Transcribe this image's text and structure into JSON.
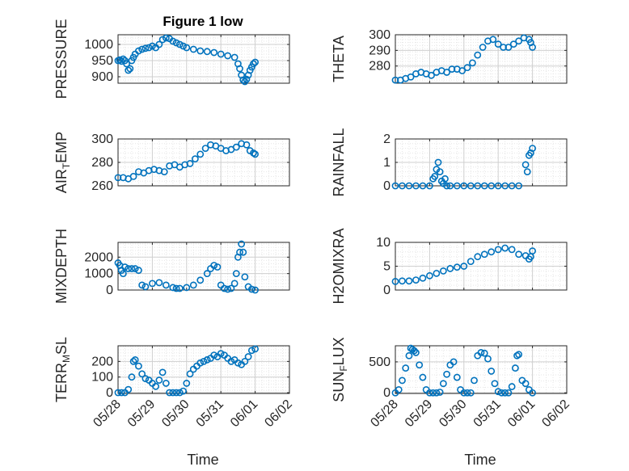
{
  "chart_data": {
    "title": "Figure 1 low",
    "type": "scatter",
    "x_tick_labels": [
      "05/28",
      "05/29",
      "05/30",
      "05/31",
      "06/01",
      "06/02"
    ],
    "x_ticks_days": [
      0,
      1,
      2,
      3,
      4,
      5
    ],
    "x_axis_label": "Time",
    "x_range_dates": [
      "05/28",
      "06/02"
    ],
    "marker": "open-circle",
    "marker_color": "#0072BD",
    "axes_color": "#262626",
    "grid_color": "#cfcfcf",
    "grid": true,
    "panels": [
      {
        "id": "pressure",
        "ylabel": "PRESSURE",
        "ylabel_sub": "",
        "ylabel_tail": "",
        "ylim": [
          880,
          1030
        ],
        "yticks": [
          900,
          950,
          1000
        ],
        "ytick_labels": [
          "900",
          "950",
          "1000"
        ],
        "x": [
          0.0,
          0.05,
          0.1,
          0.15,
          0.2,
          0.25,
          0.3,
          0.35,
          0.4,
          0.45,
          0.5,
          0.6,
          0.7,
          0.8,
          0.9,
          1.0,
          1.1,
          1.2,
          1.3,
          1.4,
          1.5,
          1.6,
          1.7,
          1.8,
          1.9,
          2.0,
          2.2,
          2.4,
          2.6,
          2.8,
          3.0,
          3.2,
          3.4,
          3.5,
          3.55,
          3.6,
          3.65,
          3.7,
          3.75,
          3.8,
          3.85,
          3.9,
          3.95,
          4.0
        ],
        "y": [
          950,
          952,
          948,
          955,
          950,
          940,
          920,
          925,
          950,
          960,
          970,
          980,
          985,
          988,
          990,
          995,
          990,
          1000,
          1015,
          1020,
          1018,
          1010,
          1005,
          1000,
          995,
          990,
          985,
          980,
          978,
          975,
          970,
          965,
          960,
          940,
          925,
          905,
          890,
          885,
          892,
          905,
          920,
          930,
          940,
          945
        ]
      },
      {
        "id": "theta",
        "ylabel": "THETA",
        "ylabel_sub": "",
        "ylabel_tail": "",
        "ylim": [
          269,
          300
        ],
        "yticks": [
          280,
          290,
          300
        ],
        "ytick_labels": [
          "280",
          "290",
          "300"
        ],
        "x": [
          0.0,
          0.15,
          0.3,
          0.45,
          0.6,
          0.75,
          0.9,
          1.05,
          1.2,
          1.35,
          1.5,
          1.65,
          1.8,
          1.95,
          2.1,
          2.25,
          2.4,
          2.55,
          2.7,
          2.85,
          3.0,
          3.15,
          3.3,
          3.45,
          3.6,
          3.75,
          3.9,
          3.95,
          4.0
        ],
        "y": [
          271,
          271,
          272,
          273,
          275,
          276,
          275,
          274,
          276,
          277,
          276,
          278,
          278,
          277,
          279,
          282,
          287,
          292,
          296,
          297,
          294,
          292,
          292,
          294,
          296,
          298,
          297,
          295,
          292
        ]
      },
      {
        "id": "air_temp",
        "ylabel": "AIR",
        "ylabel_sub": "T",
        "ylabel_tail": "EMP",
        "ylim": [
          260,
          300
        ],
        "yticks": [
          260,
          280,
          300
        ],
        "ytick_labels": [
          "260",
          "280",
          "300"
        ],
        "x": [
          0.0,
          0.15,
          0.3,
          0.45,
          0.6,
          0.75,
          0.9,
          1.05,
          1.2,
          1.35,
          1.5,
          1.65,
          1.8,
          1.95,
          2.1,
          2.25,
          2.4,
          2.55,
          2.7,
          2.85,
          3.0,
          3.15,
          3.3,
          3.45,
          3.6,
          3.75,
          3.85,
          3.95,
          4.0
        ],
        "y": [
          267,
          267,
          266,
          268,
          272,
          271,
          273,
          274,
          273,
          272,
          277,
          278,
          276,
          278,
          279,
          283,
          287,
          292,
          295,
          294,
          292,
          290,
          291,
          293,
          296,
          295,
          290,
          288,
          287
        ]
      },
      {
        "id": "rainfall",
        "ylabel": "RAINFALL",
        "ylabel_sub": "",
        "ylabel_tail": "",
        "ylim": [
          0,
          2
        ],
        "yticks": [
          0,
          1,
          2
        ],
        "ytick_labels": [
          "0",
          "1",
          "2"
        ],
        "x": [
          0.0,
          0.2,
          0.4,
          0.6,
          0.8,
          1.0,
          1.1,
          1.15,
          1.2,
          1.25,
          1.3,
          1.35,
          1.4,
          1.45,
          1.5,
          1.6,
          1.8,
          2.0,
          2.2,
          2.4,
          2.6,
          2.8,
          3.0,
          3.2,
          3.4,
          3.6,
          3.8,
          3.85,
          3.9,
          3.95,
          4.0
        ],
        "y": [
          0,
          0,
          0,
          0,
          0,
          0,
          0.3,
          0.4,
          0.7,
          1.0,
          0.6,
          0.2,
          0.1,
          0.3,
          0,
          0,
          0,
          0,
          0,
          0,
          0,
          0,
          0,
          0,
          0,
          0,
          0.9,
          0.6,
          1.3,
          1.4,
          1.6
        ]
      },
      {
        "id": "mixdepth",
        "ylabel": "MIXDEPTH",
        "ylabel_sub": "",
        "ylabel_tail": "",
        "ylim": [
          0,
          2900
        ],
        "yticks": [
          0,
          1000,
          2000
        ],
        "ytick_labels": [
          "0",
          "1000",
          "2000"
        ],
        "x": [
          0.0,
          0.05,
          0.1,
          0.15,
          0.2,
          0.3,
          0.4,
          0.5,
          0.6,
          0.7,
          0.8,
          1.0,
          1.2,
          1.4,
          1.6,
          1.7,
          1.8,
          2.0,
          2.2,
          2.4,
          2.6,
          2.7,
          2.8,
          2.9,
          3.0,
          3.1,
          3.2,
          3.3,
          3.4,
          3.45,
          3.5,
          3.55,
          3.6,
          3.65,
          3.7,
          3.8,
          3.9,
          4.0
        ],
        "y": [
          1650,
          1500,
          1200,
          1000,
          1400,
          1300,
          1300,
          1300,
          1200,
          300,
          200,
          400,
          450,
          300,
          150,
          100,
          100,
          150,
          300,
          600,
          1000,
          1300,
          1500,
          1400,
          300,
          100,
          50,
          100,
          400,
          1000,
          2000,
          2300,
          2800,
          2300,
          800,
          200,
          50,
          0
        ]
      },
      {
        "id": "h2omixra",
        "ylabel": "H2OMIXRA",
        "ylabel_sub": "",
        "ylabel_tail": "",
        "ylim": [
          0,
          10
        ],
        "yticks": [
          0,
          5,
          10
        ],
        "ytick_labels": [
          "0",
          "5",
          "10"
        ],
        "x": [
          0.0,
          0.2,
          0.4,
          0.6,
          0.8,
          1.0,
          1.2,
          1.4,
          1.6,
          1.8,
          2.0,
          2.2,
          2.4,
          2.6,
          2.8,
          3.0,
          3.2,
          3.4,
          3.6,
          3.8,
          3.9,
          3.95,
          4.0
        ],
        "y": [
          1.8,
          1.9,
          1.9,
          2.1,
          2.5,
          3.0,
          3.5,
          4.0,
          4.5,
          4.8,
          5.0,
          6.0,
          7.0,
          7.5,
          8.0,
          8.5,
          8.8,
          8.5,
          7.5,
          7.2,
          6.5,
          7.0,
          8.2
        ]
      },
      {
        "id": "terr_msl",
        "ylabel": "TERR",
        "ylabel_sub": "M",
        "ylabel_tail": "SL",
        "ylim": [
          -5,
          300
        ],
        "yticks": [
          0,
          100,
          200
        ],
        "ytick_labels": [
          "0",
          "100",
          "200"
        ],
        "x": [
          0.0,
          0.1,
          0.2,
          0.3,
          0.4,
          0.45,
          0.5,
          0.6,
          0.7,
          0.8,
          0.9,
          1.0,
          1.1,
          1.2,
          1.3,
          1.4,
          1.5,
          1.6,
          1.7,
          1.8,
          1.9,
          2.0,
          2.1,
          2.2,
          2.3,
          2.4,
          2.5,
          2.6,
          2.7,
          2.8,
          2.9,
          3.0,
          3.1,
          3.2,
          3.3,
          3.4,
          3.5,
          3.6,
          3.7,
          3.8,
          3.9,
          4.0
        ],
        "y": [
          0,
          0,
          0,
          20,
          100,
          200,
          210,
          170,
          120,
          90,
          80,
          60,
          40,
          80,
          130,
          60,
          0,
          0,
          0,
          0,
          10,
          60,
          120,
          150,
          170,
          190,
          200,
          210,
          220,
          240,
          230,
          250,
          240,
          220,
          200,
          210,
          190,
          180,
          200,
          230,
          270,
          280
        ]
      },
      {
        "id": "sun_flux",
        "ylabel": "SUN",
        "ylabel_sub": "F",
        "ylabel_tail": "LUX",
        "ylim": [
          -10,
          760
        ],
        "yticks": [
          0,
          500
        ],
        "ytick_labels": [
          "0",
          "500"
        ],
        "x": [
          0.0,
          0.1,
          0.2,
          0.3,
          0.4,
          0.45,
          0.5,
          0.55,
          0.6,
          0.7,
          0.8,
          0.9,
          1.0,
          1.1,
          1.2,
          1.3,
          1.4,
          1.5,
          1.6,
          1.7,
          1.8,
          1.9,
          2.0,
          2.1,
          2.2,
          2.3,
          2.4,
          2.5,
          2.6,
          2.7,
          2.8,
          2.9,
          3.0,
          3.1,
          3.2,
          3.3,
          3.4,
          3.5,
          3.55,
          3.6,
          3.7,
          3.8,
          3.9,
          4.0
        ],
        "y": [
          0,
          50,
          200,
          400,
          600,
          720,
          700,
          680,
          650,
          450,
          250,
          50,
          0,
          0,
          0,
          10,
          150,
          300,
          450,
          500,
          250,
          50,
          0,
          0,
          0,
          200,
          600,
          650,
          640,
          550,
          350,
          150,
          20,
          0,
          0,
          0,
          100,
          400,
          600,
          620,
          200,
          150,
          50,
          0
        ]
      }
    ]
  }
}
